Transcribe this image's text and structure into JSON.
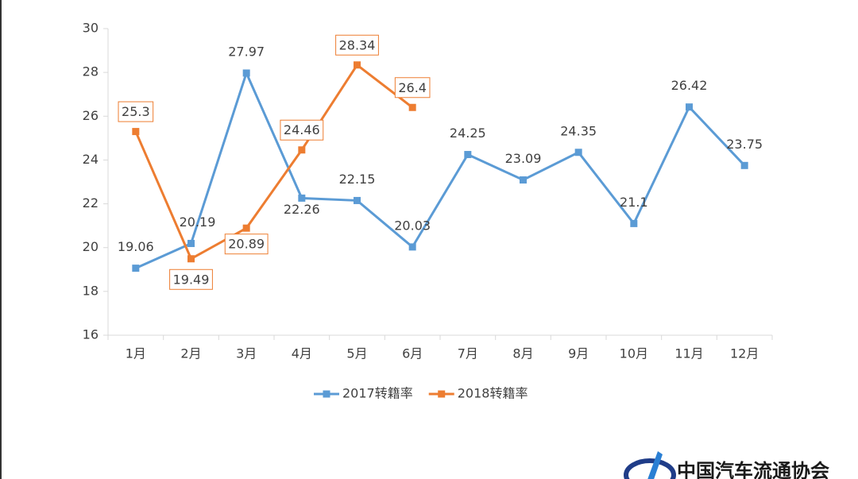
{
  "chart_data": {
    "type": "line",
    "categories": [
      "1月",
      "2月",
      "3月",
      "4月",
      "5月",
      "6月",
      "7月",
      "8月",
      "9月",
      "10月",
      "11月",
      "12月"
    ],
    "series": [
      {
        "name": "2017转籍率",
        "color": "#5b9bd5",
        "values": [
          19.06,
          20.19,
          27.97,
          22.26,
          22.15,
          20.03,
          24.25,
          23.09,
          24.35,
          21.1,
          26.42,
          23.75
        ]
      },
      {
        "name": "2018转籍率",
        "color": "#ed7d31",
        "values": [
          25.3,
          19.49,
          20.89,
          24.46,
          28.34,
          26.4,
          null,
          null,
          null,
          null,
          null,
          null
        ]
      }
    ],
    "ylim": [
      16,
      30
    ],
    "yticks": [
      16,
      18,
      20,
      22,
      24,
      26,
      28,
      30
    ],
    "legend": "bottom"
  },
  "logo": "中国汽车流通协会"
}
